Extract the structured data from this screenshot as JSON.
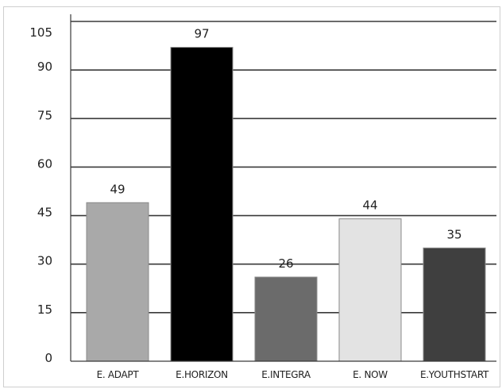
{
  "chart_data": {
    "type": "bar",
    "title": "",
    "xlabel": "",
    "ylabel": "",
    "categories": [
      "E. ADAPT",
      "E.HORIZON",
      "E.INTEGRA",
      "E. NOW",
      "E.YOUTHSTART"
    ],
    "values": [
      49,
      97,
      26,
      44,
      35
    ],
    "bar_colors": [
      "#a9a9a9",
      "#000000",
      "#6b6b6b",
      "#e3e3e3",
      "#3f3f3f"
    ],
    "ylim": [
      0,
      105
    ],
    "yticks": [
      0,
      15,
      30,
      45,
      60,
      75,
      90,
      105
    ],
    "grid": true,
    "legend": "none"
  }
}
